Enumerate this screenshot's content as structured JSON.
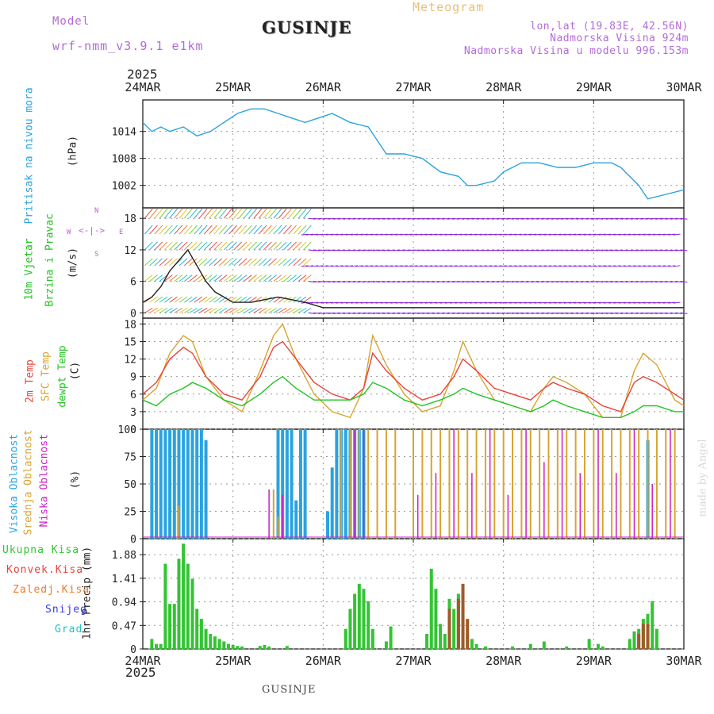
{
  "header": {
    "model_label": "Model",
    "model_name": "wrf-nmm_v3.9.1 e1km",
    "station": "GUSINJE",
    "product": "Meteogram",
    "coords": "lon,lat (19.83E, 42.56N)",
    "elevation": "Nadmorska Visina 924m",
    "model_elevation": "Nadmorska Visina u modelu 996.153m",
    "year_top": "2025",
    "year_bottom": "2025",
    "footer_station": "GUSINJE",
    "signature": "made by Angel"
  },
  "colors": {
    "pressure": "#2aa3e0",
    "temp2m": "#e8433b",
    "sfc": "#d9a430",
    "dewpt": "#22c422",
    "high_cloud": "#2aa3e0",
    "mid_cloud": "#d9a430",
    "low_cloud": "#c81fc8",
    "precip_total": "#33c433",
    "precip_conv": "#a05a2a",
    "wind_purple": "#8a1fd8"
  },
  "date_axis": [
    "24MAR",
    "25MAR",
    "26MAR",
    "27MAR",
    "28MAR",
    "29MAR",
    "30MAR"
  ],
  "panels": {
    "pressure": {
      "label": "Pritisak na nivou mora",
      "unit": "(hPa)",
      "ticks": [
        "1014",
        "1008",
        "1002"
      ]
    },
    "wind": {
      "label1": "10m Vjetar",
      "label2": "Brzina i Pravac",
      "unit": "(m/s)",
      "compass_n": "N",
      "compass_s": "S",
      "compass_w": "W",
      "compass_e": "E",
      "ticks": [
        "18",
        "12",
        "6",
        "0"
      ]
    },
    "temp": {
      "label1": "2m Temp",
      "label2": "SFC Temp",
      "label3": "dewpt Temp",
      "unit": "(C)",
      "ticks": [
        "18",
        "15",
        "12",
        "9",
        "6",
        "3",
        "0"
      ]
    },
    "cloud": {
      "label1": "Visoka Oblacnost",
      "label2": "Srednja Oblacnost",
      "label3": "Niska Oblacnost",
      "unit": "(%)",
      "ticks": [
        "100",
        "75",
        "50",
        "25",
        "0"
      ]
    },
    "precip": {
      "legend": [
        "Ukupna Kisa",
        "Konvek.Kisa",
        "Zaledj.Kisa",
        "Snijeg",
        "Grad"
      ],
      "legend_colors": [
        "#33c433",
        "#e8433b",
        "#f07a28",
        "#3a3ae0",
        "#2ac0c0"
      ],
      "axis_label": "1hr Precip (mm)",
      "ticks": [
        "1.88",
        "1.41",
        "0.94",
        "0.47",
        "0"
      ]
    }
  },
  "chart_data": [
    {
      "type": "line",
      "ylabel": "(hPa)",
      "ylim": [
        997,
        1021
      ],
      "x_days": [
        0,
        0.1,
        0.2,
        0.3,
        0.45,
        0.6,
        0.75,
        0.9,
        1.05,
        1.2,
        1.35,
        1.5,
        1.65,
        1.8,
        1.95,
        2.1,
        2.3,
        2.5,
        2.6,
        2.7,
        2.9,
        3.1,
        3.3,
        3.5,
        3.6,
        3.7,
        3.9,
        4.0,
        4.2,
        4.4,
        4.6,
        4.8,
        5.0,
        5.2,
        5.3,
        5.5,
        5.6,
        5.8,
        6.0
      ],
      "series": [
        {
          "values": [
            1016,
            1014,
            1015,
            1014,
            1015,
            1013,
            1014,
            1016,
            1018,
            1019,
            1019,
            1018,
            1017,
            1016,
            1017,
            1018,
            1016,
            1015,
            1012,
            1009,
            1009,
            1008,
            1005,
            1004,
            1002,
            1002,
            1003,
            1005,
            1007,
            1007,
            1006,
            1006,
            1007,
            1007,
            1006,
            1002,
            999,
            1000,
            1001
          ]
        }
      ]
    },
    {
      "type": "line",
      "ylabel": "(m/s)",
      "ylim": [
        -1,
        20
      ],
      "x_days": [
        0,
        0.1,
        0.2,
        0.3,
        0.4,
        0.5,
        0.6,
        0.7,
        0.8,
        0.9,
        1.0,
        1.2,
        1.5,
        1.8,
        2.0,
        2.5,
        3.0,
        3.5,
        4.0,
        4.5,
        5.0,
        5.5,
        6.0
      ],
      "series": [
        {
          "values": [
            2,
            3,
            5,
            8,
            10,
            12,
            9,
            6,
            4,
            3,
            2,
            2,
            3,
            2,
            1,
            1,
            1,
            1,
            1,
            1,
            1,
            1,
            1
          ]
        }
      ]
    },
    {
      "type": "line",
      "ylabel": "(C)",
      "ylim": [
        0,
        19
      ],
      "x_days": [
        0,
        0.15,
        0.3,
        0.45,
        0.55,
        0.7,
        0.9,
        1.1,
        1.3,
        1.45,
        1.55,
        1.7,
        1.9,
        2.1,
        2.3,
        2.45,
        2.55,
        2.7,
        2.9,
        3.1,
        3.3,
        3.45,
        3.55,
        3.7,
        3.9,
        4.1,
        4.3,
        4.45,
        4.55,
        4.7,
        4.9,
        5.1,
        5.3,
        5.45,
        5.55,
        5.7,
        5.9,
        6.0
      ],
      "series": [
        {
          "values": [
            6,
            8,
            12,
            14,
            13,
            9,
            6,
            5,
            9,
            14,
            15,
            12,
            8,
            6,
            5,
            7,
            13,
            10,
            7,
            5,
            6,
            9,
            12,
            10,
            7,
            6,
            5,
            7,
            8,
            7,
            6,
            4,
            3,
            8,
            9,
            8,
            6,
            5
          ]
        },
        {
          "values": [
            5,
            7,
            13,
            16,
            15,
            9,
            5,
            3,
            10,
            16,
            18,
            12,
            6,
            3,
            2,
            7,
            16,
            11,
            6,
            3,
            4,
            10,
            15,
            10,
            5,
            4,
            3,
            7,
            9,
            8,
            6,
            2,
            2,
            10,
            13,
            11,
            5,
            4
          ]
        },
        {
          "values": [
            5,
            4,
            6,
            7,
            8,
            7,
            5,
            4,
            6,
            8,
            9,
            7,
            5,
            5,
            5,
            6,
            8,
            7,
            5,
            4,
            5,
            6,
            7,
            6,
            5,
            4,
            3,
            4,
            5,
            4,
            3,
            2,
            2,
            3,
            4,
            4,
            3,
            3
          ]
        }
      ]
    },
    {
      "type": "bar",
      "ylabel": "(%)",
      "ylim": [
        0,
        100
      ],
      "series": [
        {
          "x_days": [
            0.1,
            0.15,
            0.2,
            0.25,
            0.3,
            0.35,
            0.4,
            0.45,
            0.5,
            0.55,
            0.6,
            0.65,
            0.7,
            1.5,
            1.55,
            1.6,
            1.65,
            1.7,
            1.75,
            1.8,
            2.05,
            2.1,
            2.15,
            2.2,
            2.25,
            2.3,
            2.35,
            2.4,
            2.45,
            5.6
          ],
          "values": [
            100,
            100,
            100,
            100,
            100,
            100,
            100,
            100,
            100,
            100,
            100,
            100,
            90,
            100,
            100,
            100,
            100,
            35,
            100,
            100,
            25,
            65,
            100,
            100,
            100,
            100,
            100,
            100,
            100,
            90
          ]
        },
        {
          "x_days": [
            0.4,
            1.45,
            1.5,
            2.2,
            2.3,
            2.4,
            2.5,
            2.6,
            2.7,
            2.8,
            3.0,
            3.1,
            3.2,
            3.3,
            3.4,
            3.5,
            3.6,
            3.7,
            3.8,
            3.9,
            4.0,
            4.1,
            4.2,
            4.3,
            4.4,
            4.5,
            4.6,
            4.7,
            4.8,
            4.9,
            5.0,
            5.1,
            5.2,
            5.3,
            5.4,
            5.5,
            5.6,
            5.7,
            5.8,
            5.9
          ],
          "values": [
            30,
            45,
            20,
            100,
            100,
            100,
            100,
            100,
            100,
            100,
            100,
            100,
            100,
            100,
            100,
            100,
            100,
            100,
            100,
            100,
            100,
            100,
            100,
            100,
            100,
            100,
            100,
            100,
            100,
            100,
            100,
            100,
            100,
            100,
            100,
            100,
            100,
            100,
            100,
            100
          ]
        },
        {
          "x_days": [
            1.4,
            1.55,
            2.35,
            2.45,
            3.05,
            3.25,
            3.45,
            3.65,
            3.85,
            4.05,
            4.25,
            4.45,
            4.65,
            4.85,
            5.05,
            5.25,
            5.45,
            5.65,
            5.85
          ],
          "values": [
            45,
            40,
            100,
            100,
            40,
            60,
            100,
            60,
            100,
            40,
            100,
            70,
            100,
            60,
            100,
            60,
            100,
            50,
            100
          ]
        }
      ]
    },
    {
      "type": "bar",
      "ylabel": "1hr Precip (mm)",
      "ylim": [
        0,
        2.2
      ],
      "series": [
        {
          "x_days": [
            0.1,
            0.15,
            0.2,
            0.25,
            0.3,
            0.35,
            0.4,
            0.45,
            0.5,
            0.55,
            0.6,
            0.65,
            0.7,
            0.75,
            0.8,
            0.85,
            0.9,
            0.95,
            1.0,
            1.05,
            1.1,
            1.3,
            1.35,
            1.4,
            1.6,
            2.25,
            2.3,
            2.35,
            2.4,
            2.45,
            2.5,
            2.55,
            2.7,
            2.75,
            3.15,
            3.2,
            3.25,
            3.3,
            3.35,
            3.4,
            3.45,
            3.5,
            3.55,
            3.6,
            3.65,
            3.7,
            3.8,
            4.1,
            4.3,
            4.45,
            4.7,
            4.95,
            5.05,
            5.1,
            5.4,
            5.45,
            5.5,
            5.55,
            5.6,
            5.65,
            5.7
          ],
          "values": [
            0.2,
            0.1,
            0.1,
            1.7,
            0.9,
            0.9,
            1.8,
            2.1,
            1.7,
            1.4,
            0.8,
            0.6,
            0.4,
            0.3,
            0.25,
            0.2,
            0.15,
            0.1,
            0.08,
            0.06,
            0.05,
            0.06,
            0.08,
            0.05,
            0.06,
            0.4,
            0.8,
            1.1,
            1.3,
            1.2,
            0.95,
            0.4,
            0.15,
            0.45,
            0.3,
            1.6,
            1.2,
            0.5,
            0.3,
            1.0,
            0.8,
            1.1,
            0.7,
            0.3,
            0.2,
            0.1,
            0.05,
            0.05,
            0.1,
            0.15,
            0.05,
            0.2,
            0.1,
            0.05,
            0.2,
            0.35,
            0.4,
            0.6,
            0.7,
            0.95,
            0.4
          ]
        },
        {
          "x_days": [
            3.4,
            3.5,
            3.55,
            3.6,
            5.5,
            5.55,
            5.6
          ],
          "values": [
            0.8,
            1.0,
            1.3,
            0.6,
            0.3,
            0.5,
            0.5
          ]
        }
      ]
    }
  ]
}
